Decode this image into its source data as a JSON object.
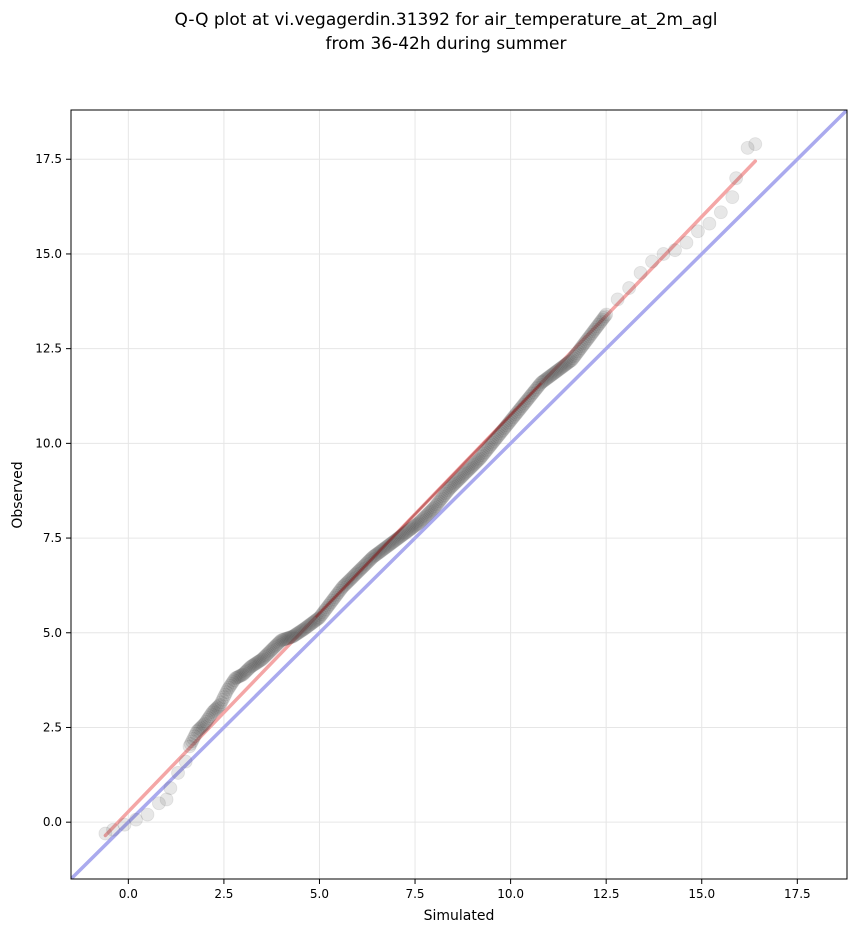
{
  "chart_data": {
    "type": "scatter",
    "title_lines": [
      "Q-Q plot at vi.vegagerdin.31392 for air_temperature_at_2m_agl",
      "from 36-42h during summer"
    ],
    "xlabel": "Simulated",
    "ylabel": "Observed",
    "xlim": [
      -1.5,
      18.8
    ],
    "ylim": [
      -1.5,
      18.8
    ],
    "x_ticks": [
      0.0,
      2.5,
      5.0,
      7.5,
      10.0,
      12.5,
      15.0,
      17.5
    ],
    "x_tick_labels": [
      "0.0",
      "2.5",
      "5.0",
      "7.5",
      "10.0",
      "12.5",
      "15.0",
      "17.5"
    ],
    "y_ticks": [
      0.0,
      2.5,
      5.0,
      7.5,
      10.0,
      12.5,
      15.0,
      17.5
    ],
    "y_tick_labels": [
      "0.0",
      "2.5",
      "5.0",
      "7.5",
      "10.0",
      "12.5",
      "15.0",
      "17.5"
    ],
    "grid": true,
    "reference_lines": [
      {
        "kind": "identity",
        "color": "#aaaaee",
        "x": [
          -1.5,
          18.8
        ],
        "y": [
          -1.5,
          18.8
        ]
      },
      {
        "kind": "fit",
        "color": "#f4a6a6",
        "x": [
          -0.6,
          16.4
        ],
        "y": [
          -0.35,
          17.45
        ]
      }
    ],
    "point_color": "#3a3a3a",
    "fit_overlay_color": "#8b1a1a",
    "quantiles": {
      "x": [
        -0.6,
        -0.4,
        0.5,
        0.8,
        1.0,
        1.1,
        1.3,
        1.5,
        1.6,
        1.8,
        2.0,
        2.2,
        2.4,
        2.6,
        2.8,
        3.0,
        3.2,
        3.5,
        3.7,
        4.0,
        4.3,
        4.6,
        5.0,
        5.3,
        5.6,
        6.0,
        6.4,
        6.8,
        7.2,
        7.6,
        8.0,
        8.4,
        8.8,
        9.2,
        9.6,
        10.0,
        10.4,
        10.8,
        11.2,
        11.6,
        11.9,
        12.2,
        12.5,
        12.8,
        13.1,
        13.4,
        13.7,
        14.0,
        14.3,
        14.6,
        14.9,
        15.2,
        15.5,
        15.8,
        15.9,
        16.2,
        16.4
      ],
      "y": [
        -0.3,
        -0.2,
        0.2,
        0.5,
        0.6,
        0.9,
        1.3,
        1.6,
        2.0,
        2.4,
        2.6,
        2.9,
        3.1,
        3.5,
        3.8,
        3.9,
        4.1,
        4.3,
        4.5,
        4.8,
        4.9,
        5.1,
        5.4,
        5.8,
        6.2,
        6.6,
        7.0,
        7.3,
        7.6,
        7.9,
        8.3,
        8.8,
        9.2,
        9.6,
        10.1,
        10.6,
        11.1,
        11.6,
        11.9,
        12.2,
        12.6,
        13.0,
        13.4,
        13.8,
        14.1,
        14.5,
        14.8,
        15.0,
        15.1,
        15.3,
        15.6,
        15.8,
        16.1,
        16.5,
        17.0,
        17.8,
        17.9
      ]
    }
  }
}
